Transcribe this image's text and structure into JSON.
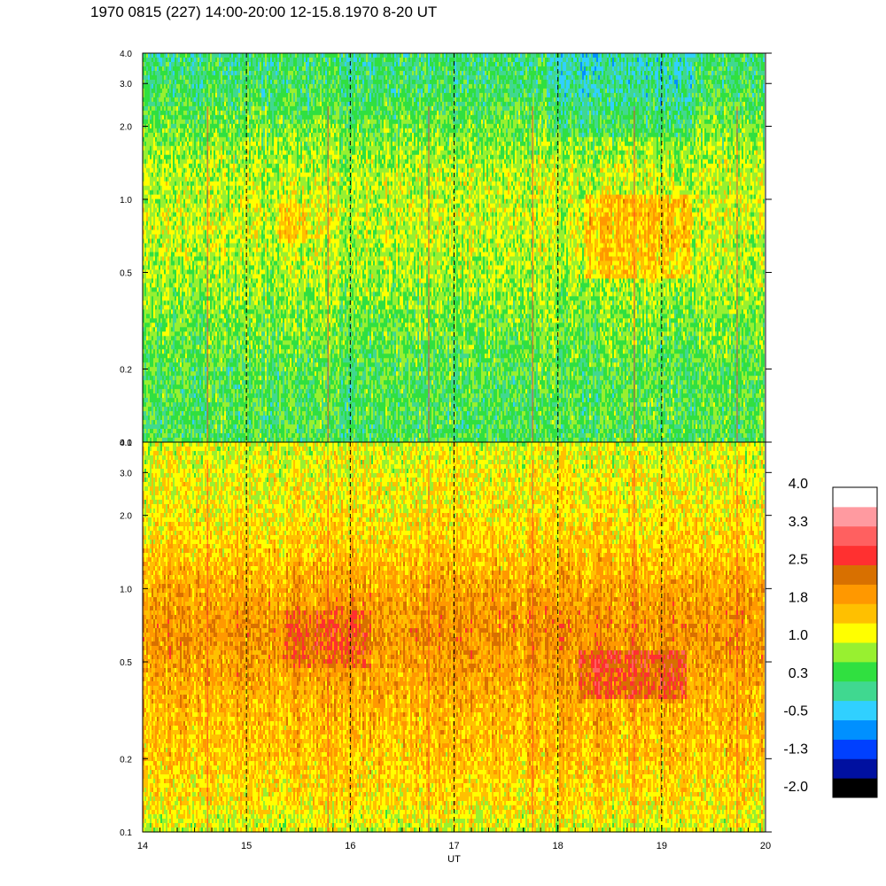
{
  "title": "1970 0815 (227) 14:00-20:00 12-15.8.1970  8-20 UT",
  "chart_data": {
    "type": "heatmap",
    "title": "1970 0815 (227) 14:00-20:00 12-15.8.1970  8-20 UT",
    "xlabel": "UT",
    "x_range": [
      14,
      20
    ],
    "x_ticks": [
      14,
      15,
      16,
      17,
      18,
      19,
      20
    ],
    "x_tick_labels": [
      "14",
      "15",
      "16",
      "17",
      "18",
      "19",
      "20"
    ],
    "dashed_verticals": [
      15,
      16,
      17,
      18,
      19
    ],
    "panels": [
      {
        "ylim": [
          0.1,
          4.0
        ],
        "y_scale": "log",
        "y_ticks": [
          0.1,
          0.2,
          0.5,
          1.0,
          2.0,
          3.0,
          4.0
        ],
        "y_tick_labels": [
          "0.1",
          "0.2",
          "0.5",
          "1.0",
          "2.0",
          "3.0",
          "4.0"
        ],
        "profile": [
          {
            "f": 0.1,
            "v": 0.2
          },
          {
            "f": 0.15,
            "v": 0.35
          },
          {
            "f": 0.2,
            "v": 0.6
          },
          {
            "f": 0.3,
            "v": 0.9
          },
          {
            "f": 0.5,
            "v": 1.0
          },
          {
            "f": 0.7,
            "v": 0.9
          },
          {
            "f": 1.0,
            "v": 0.75
          },
          {
            "f": 2.0,
            "v": 0.45
          },
          {
            "f": 4.0,
            "v": 0.4
          }
        ],
        "features": [
          {
            "t0": 18.25,
            "t1": 19.3,
            "f0": 0.38,
            "f1": 0.85,
            "dv": 0.55
          },
          {
            "t0": 17.9,
            "t1": 19.3,
            "f0": 0.1,
            "f1": 0.22,
            "dv": -0.3
          },
          {
            "t0": 15.3,
            "t1": 15.6,
            "f0": 0.42,
            "f1": 0.6,
            "dv": 0.4
          }
        ]
      },
      {
        "ylim": [
          0.1,
          4.0
        ],
        "y_scale": "log",
        "y_ticks": [
          0.1,
          0.2,
          0.5,
          1.0,
          2.0,
          3.0,
          4.0
        ],
        "y_tick_labels": [
          "0.1",
          "0.2",
          "0.5",
          "1.0",
          "2.0",
          "3.0",
          "4.0"
        ],
        "profile": [
          {
            "f": 0.1,
            "v": 1.1
          },
          {
            "f": 0.2,
            "v": 1.3
          },
          {
            "f": 0.3,
            "v": 1.6
          },
          {
            "f": 0.45,
            "v": 1.9
          },
          {
            "f": 0.6,
            "v": 2.0
          },
          {
            "f": 0.8,
            "v": 1.9
          },
          {
            "f": 1.2,
            "v": 1.7
          },
          {
            "f": 2.0,
            "v": 1.55
          },
          {
            "f": 3.0,
            "v": 1.35
          },
          {
            "f": 4.0,
            "v": 1.05
          }
        ],
        "features": [
          {
            "t0": 18.2,
            "t1": 19.25,
            "f0": 0.72,
            "f1": 1.15,
            "dv": 0.6
          },
          {
            "t0": 15.35,
            "t1": 16.2,
            "f0": 0.5,
            "f1": 0.85,
            "dv": 0.35
          }
        ]
      }
    ],
    "colorbar": {
      "range": [
        -2.0,
        4.0
      ],
      "labels": [
        "4.0",
        "3.3",
        "2.5",
        "1.8",
        "1.0",
        "0.3",
        "-0.5",
        "-1.3",
        "-2.0"
      ],
      "colors_bottom_to_top": [
        "#000000",
        "#0010a0",
        "#0040ff",
        "#0090ff",
        "#30d0ff",
        "#40d890",
        "#30e040",
        "#98f030",
        "#ffff00",
        "#ffc000",
        "#ff9800",
        "#d87000",
        "#ff3030",
        "#ff6060",
        "#ff9aa0",
        "#ffffff"
      ]
    }
  }
}
